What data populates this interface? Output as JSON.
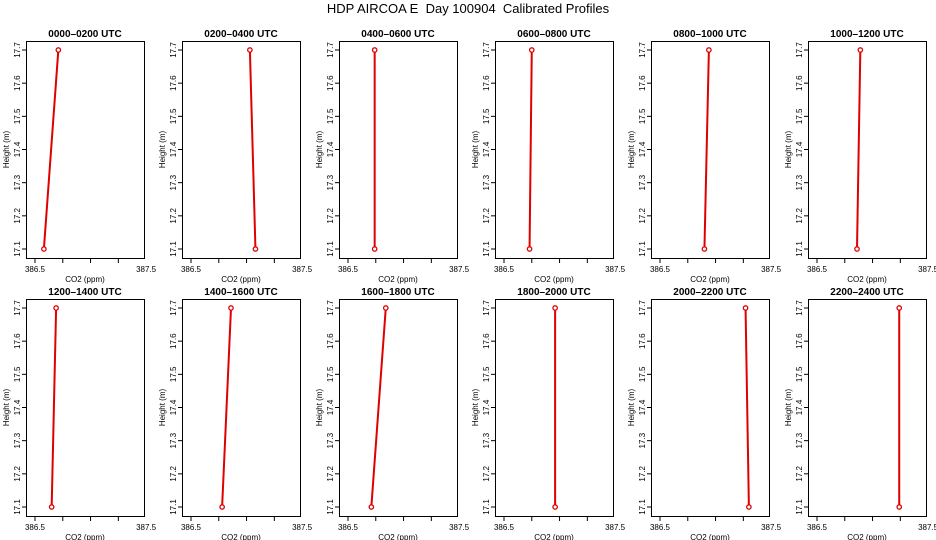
{
  "title": "HDP AIRCOA E  Day 100904  Calibrated Profiles",
  "chart_data": {
    "type": "line",
    "x_axis_label": "CO2 (ppm)",
    "y_axis_label": "Height (m)",
    "x_ticks": [
      "386.5",
      "387.5"
    ],
    "y_ticks": [
      "17.1",
      "17.2",
      "17.3",
      "17.4",
      "17.5",
      "17.6",
      "17.7"
    ],
    "xlim": [
      386.5,
      387.4
    ],
    "ylim": [
      17.1,
      17.7
    ],
    "line_color": "#e00000",
    "panels": [
      {
        "title": "0000–0200 UTC",
        "x": [
          386.58,
          386.71
        ],
        "y": [
          17.1,
          17.7
        ]
      },
      {
        "title": "0200–0400 UTC",
        "x": [
          387.08,
          387.03
        ],
        "y": [
          17.1,
          17.7
        ]
      },
      {
        "title": "0400–0600 UTC",
        "x": [
          386.74,
          386.74
        ],
        "y": [
          17.1,
          17.7
        ]
      },
      {
        "title": "0600–0800 UTC",
        "x": [
          386.73,
          386.75
        ],
        "y": [
          17.1,
          17.7
        ]
      },
      {
        "title": "0800–1000 UTC",
        "x": [
          386.9,
          386.94
        ],
        "y": [
          17.1,
          17.7
        ]
      },
      {
        "title": "1000–1200 UTC",
        "x": [
          386.86,
          386.89
        ],
        "y": [
          17.1,
          17.7
        ]
      },
      {
        "title": "1200–1400 UTC",
        "x": [
          386.65,
          386.69
        ],
        "y": [
          17.1,
          17.7
        ]
      },
      {
        "title": "1400–1600 UTC",
        "x": [
          386.78,
          386.86
        ],
        "y": [
          17.1,
          17.7
        ]
      },
      {
        "title": "1600–1800 UTC",
        "x": [
          386.71,
          386.84
        ],
        "y": [
          17.1,
          17.7
        ]
      },
      {
        "title": "1800–2000 UTC",
        "x": [
          386.96,
          386.96
        ],
        "y": [
          17.1,
          17.7
        ]
      },
      {
        "title": "2000–2200 UTC",
        "x": [
          387.3,
          387.27
        ],
        "y": [
          17.1,
          17.7
        ]
      },
      {
        "title": "2200–2400 UTC",
        "x": [
          387.24,
          387.24
        ],
        "y": [
          17.1,
          17.7
        ]
      }
    ]
  }
}
